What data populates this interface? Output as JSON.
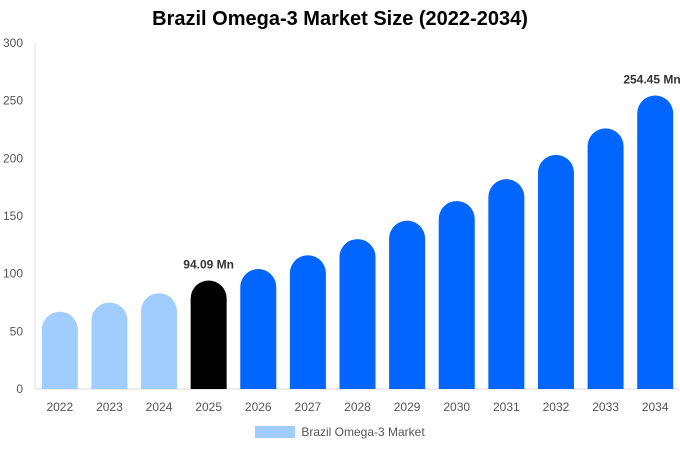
{
  "chart_data": {
    "type": "bar",
    "title": "Brazil Omega-3 Market Size (2022-2034)",
    "categories": [
      "2022",
      "2023",
      "2024",
      "2025",
      "2026",
      "2027",
      "2028",
      "2029",
      "2030",
      "2031",
      "2032",
      "2033",
      "2034"
    ],
    "series": [
      {
        "name": "Brazil Omega-3 Market",
        "values": [
          67,
          75,
          83,
          94.09,
          104,
          116,
          130,
          146,
          163,
          182,
          203,
          226,
          254.45
        ]
      }
    ],
    "data_labels": [
      {
        "category": "2025",
        "text": "94.09 Mn"
      },
      {
        "category": "2034",
        "text": "254.45 Mn"
      }
    ],
    "ylim": [
      0,
      300
    ],
    "yticks": [
      0,
      50,
      100,
      150,
      200,
      250,
      300
    ],
    "xlabel": "",
    "ylabel": "",
    "grid": false,
    "legend_position": "bottom",
    "colors": {
      "historical": "#a0cdfd",
      "current": "#000000",
      "forecast": "#0066ff"
    }
  }
}
